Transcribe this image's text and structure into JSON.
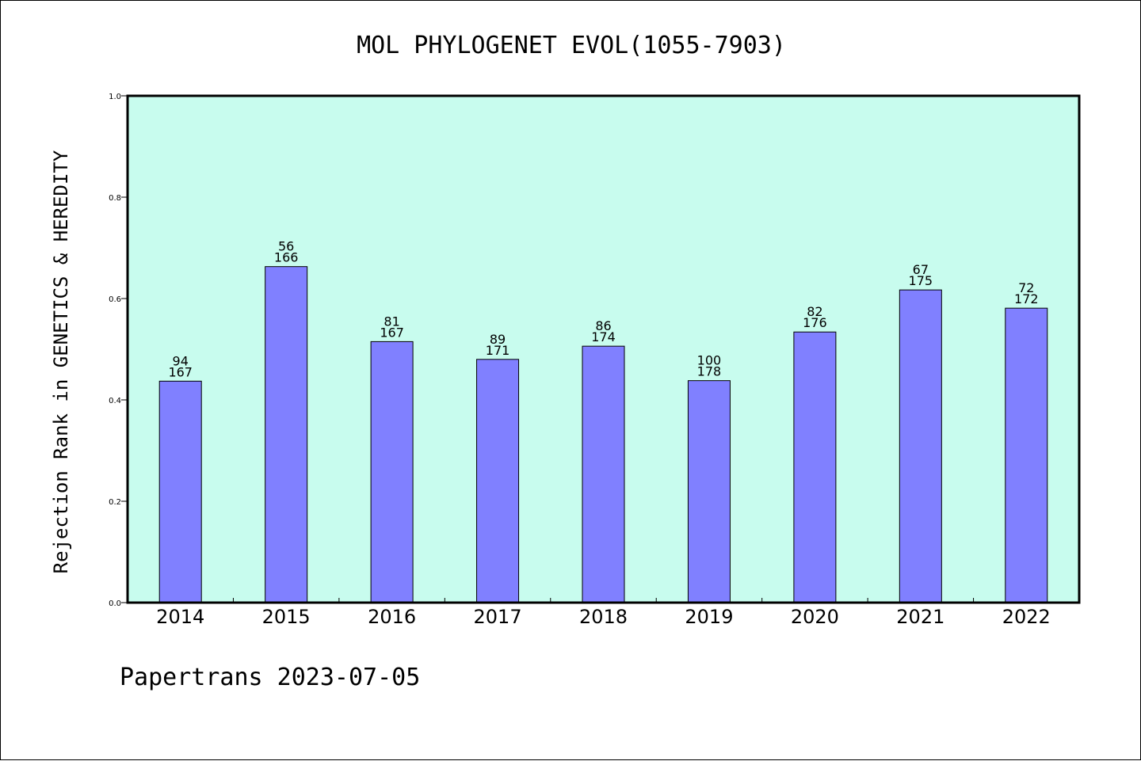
{
  "chart_data": {
    "type": "bar",
    "title": "MOL PHYLOGENET EVOL(1055-7903)",
    "xlabel": "",
    "ylabel": "Rejection Rank in GENETICS & HEREDITY",
    "ylim": [
      0,
      1.0
    ],
    "yticks": [
      "0.0",
      "0.2",
      "0.4",
      "0.6",
      "0.8",
      "1.0"
    ],
    "categories": [
      "2014",
      "2015",
      "2016",
      "2017",
      "2018",
      "2019",
      "2020",
      "2021",
      "2022"
    ],
    "values": [
      0.437,
      0.663,
      0.515,
      0.48,
      0.506,
      0.438,
      0.534,
      0.617,
      0.581
    ],
    "rank_labels": [
      "94",
      "56",
      "81",
      "89",
      "86",
      "100",
      "82",
      "67",
      "72"
    ],
    "total_labels": [
      "167",
      "166",
      "167",
      "171",
      "174",
      "178",
      "176",
      "175",
      "172"
    ],
    "grid": false,
    "legend": "none",
    "colors": {
      "bar": "#8080ff",
      "plot_bg": "#c8fcee",
      "axis": "#000000"
    }
  },
  "footer": {
    "text": "Papertrans 2023-07-05"
  }
}
